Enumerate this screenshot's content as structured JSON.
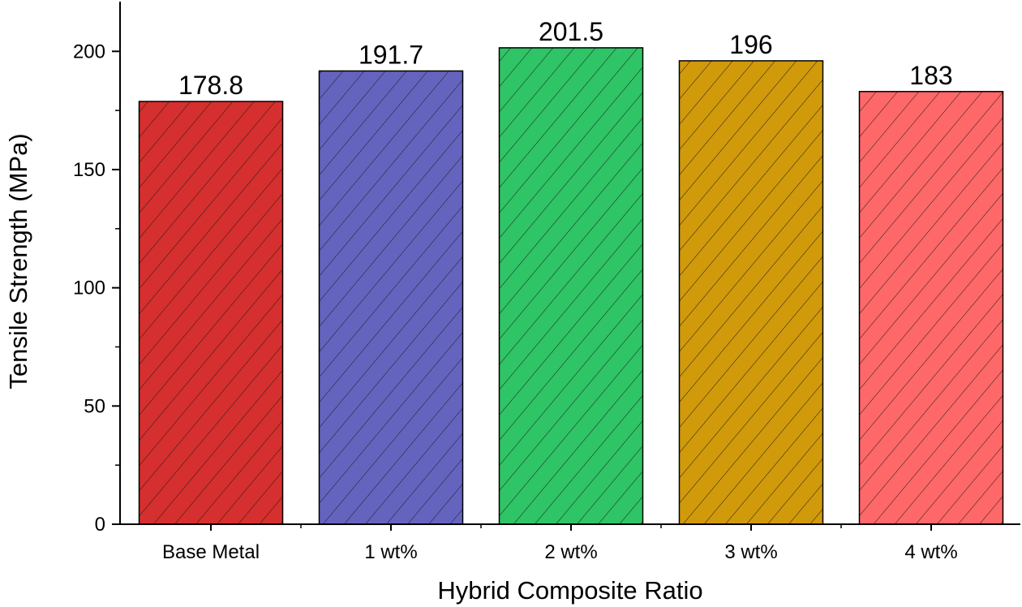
{
  "chart_data": {
    "type": "bar",
    "title": "",
    "xlabel": "Hybrid Composite Ratio",
    "ylabel": "Tensile Strength (MPa)",
    "categories": [
      "Base Metal",
      "1 wt%",
      "2 wt%",
      "3 wt%",
      "4 wt%"
    ],
    "values": [
      178.8,
      191.7,
      201.5,
      196,
      183
    ],
    "value_labels": [
      "178.8",
      "191.7",
      "201.5",
      "196",
      "183"
    ],
    "colors": [
      "#d62f2f",
      "#6464bf",
      "#2fc466",
      "#d19a0a",
      "#ff6868"
    ],
    "pattern": "diagonal-hatch",
    "ylim": [
      0,
      220
    ],
    "yticks": [
      0,
      50,
      100,
      150,
      200
    ],
    "ytick_labels": [
      "0",
      "50",
      "100",
      "150",
      "200"
    ],
    "y_minor_step": 25,
    "grid": false,
    "legend": "none"
  }
}
